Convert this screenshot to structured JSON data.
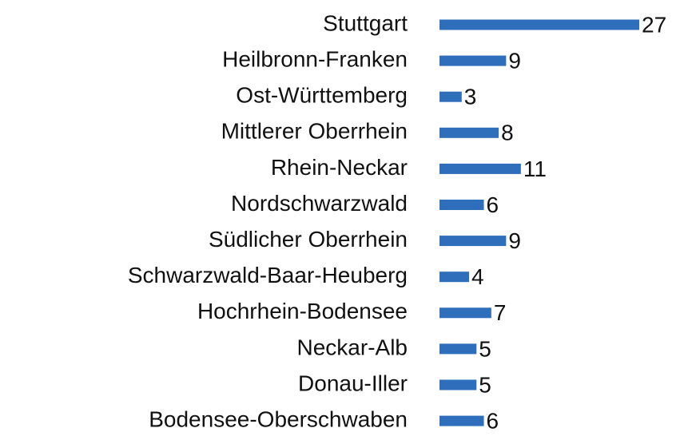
{
  "chart_data": {
    "type": "bar",
    "orientation": "horizontal",
    "categories": [
      "Stuttgart",
      "Heilbronn-Franken",
      "Ost-Württemberg",
      "Mittlerer Oberrhein",
      "Rhein-Neckar",
      "Nordschwarzwald",
      "Südlicher Oberrhein",
      "Schwarzwald-Baar-Heuberg",
      "Hochrhein-Bodensee",
      "Neckar-Alb",
      "Donau-Iller",
      "Bodensee-Oberschwaben"
    ],
    "values": [
      27,
      9,
      3,
      8,
      11,
      6,
      9,
      4,
      7,
      5,
      5,
      6
    ],
    "color": "#2f6eba"
  }
}
